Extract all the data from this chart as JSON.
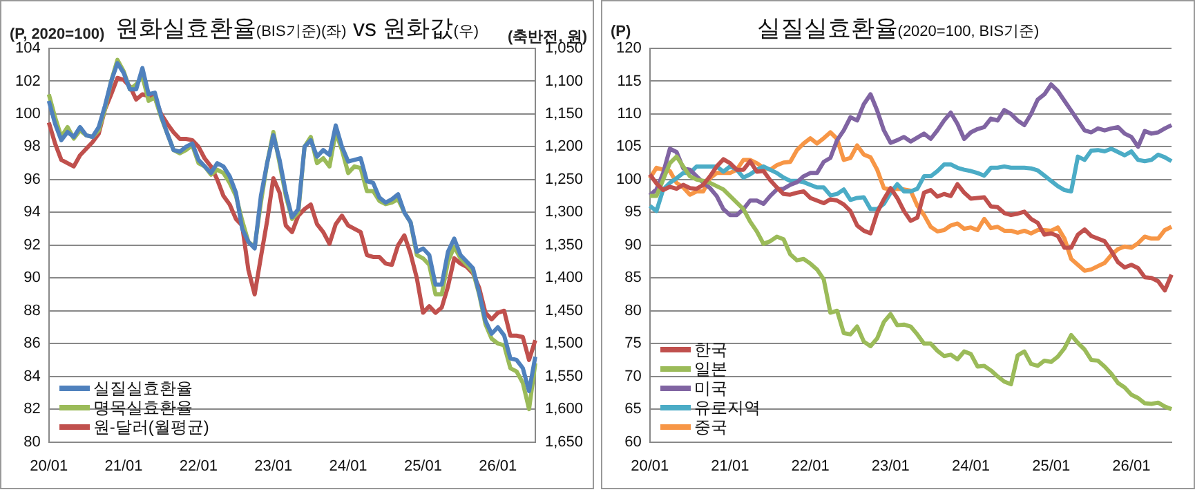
{
  "chart_data": [
    {
      "type": "line",
      "title": "원화실효환율(BIS기준)(좌) vs 원화값(우)",
      "ylabel": "(P, 2020=100)",
      "y2label": "(축반전, 원)",
      "categories": [
        "20/01",
        null,
        null,
        null,
        null,
        null,
        null,
        null,
        null,
        null,
        null,
        null,
        "21/01",
        null,
        null,
        null,
        null,
        null,
        null,
        null,
        null,
        null,
        null,
        null,
        "22/01",
        null,
        null,
        null,
        null,
        null,
        null,
        null,
        null,
        null,
        null,
        null,
        "23/01",
        null,
        null,
        null,
        null,
        null,
        null,
        null,
        null,
        null,
        null,
        null,
        "24/01",
        null,
        null,
        null,
        null,
        null,
        null,
        null,
        null,
        null,
        null,
        null,
        "25/01",
        null,
        null,
        null,
        null,
        null,
        null,
        null,
        null,
        null,
        null,
        null,
        "26/01",
        null,
        null,
        null,
        null,
        null,
        null
      ],
      "series": [
        {
          "name": "실질실효환율",
          "color": "#4f81bd",
          "values": [
            100.8,
            99.4,
            98.4,
            98.9,
            98.6,
            99.2,
            98.7,
            98.6,
            99.2,
            100.5,
            102.0,
            103.1,
            102.5,
            101.5,
            101.5,
            102.8,
            101.2,
            101.3,
            99.9,
            98.8,
            97.8,
            97.7,
            98.0,
            98.2,
            97.2,
            96.8,
            96.4,
            97.0,
            96.8,
            96.2,
            95.2,
            93.0,
            92.2,
            91.8,
            95.0,
            97.0,
            98.7,
            97.2,
            95.2,
            93.7,
            94.2,
            98.0,
            98.4,
            97.4,
            97.8,
            97.5,
            99.3,
            98.0,
            97.1,
            97.2,
            97.3,
            95.9,
            95.8,
            94.9,
            94.6,
            94.8,
            95.1,
            94.0,
            93.4,
            91.6,
            91.8,
            91.4,
            89.6,
            89.6,
            91.6,
            92.4,
            91.4,
            91.0,
            90.6,
            89.1,
            87.4,
            86.6,
            87.0,
            86.5,
            85.1,
            85.0,
            84.5,
            83.1,
            85.2
          ]
        },
        {
          "name": "명목실효환율",
          "color": "#9bbb59",
          "values": [
            101.2,
            99.8,
            98.6,
            99.2,
            98.5,
            99.0,
            98.7,
            98.6,
            99.0,
            100.3,
            102.0,
            103.3,
            102.6,
            101.5,
            101.8,
            102.3,
            100.8,
            101.0,
            99.8,
            98.8,
            97.8,
            97.6,
            97.8,
            98.1,
            97.0,
            96.8,
            96.3,
            96.6,
            96.4,
            95.8,
            95.0,
            93.5,
            92.2,
            91.9,
            94.6,
            97.0,
            98.9,
            97.0,
            95.0,
            93.6,
            94.0,
            98.0,
            98.6,
            97.0,
            97.3,
            96.8,
            98.9,
            97.8,
            96.4,
            96.8,
            96.7,
            95.3,
            95.3,
            94.7,
            94.5,
            94.6,
            94.8,
            94.0,
            93.4,
            91.4,
            91.2,
            90.8,
            89.0,
            89.0,
            91.0,
            91.9,
            91.2,
            90.8,
            90.4,
            89.0,
            87.2,
            86.3,
            86.0,
            85.9,
            84.5,
            84.3,
            83.6,
            82.0,
            84.8
          ]
        },
        {
          "name": "원-달러(월평균)",
          "color": "#c0504d",
          "axis": "y2",
          "values": [
            1163,
            1195,
            1220,
            1225,
            1230,
            1213,
            1203,
            1193,
            1180,
            1143,
            1120,
            1095,
            1098,
            1108,
            1128,
            1120,
            1123,
            1125,
            1150,
            1165,
            1178,
            1188,
            1188,
            1190,
            1200,
            1218,
            1230,
            1250,
            1275,
            1288,
            1310,
            1320,
            1388,
            1425,
            1368,
            1313,
            1248,
            1270,
            1320,
            1330,
            1305,
            1295,
            1288,
            1318,
            1330,
            1348,
            1318,
            1305,
            1320,
            1325,
            1330,
            1365,
            1368,
            1368,
            1378,
            1380,
            1350,
            1335,
            1363,
            1400,
            1453,
            1443,
            1453,
            1445,
            1413,
            1370,
            1378,
            1383,
            1393,
            1415,
            1453,
            1463,
            1453,
            1450,
            1488,
            1488,
            1490,
            1525,
            1495
          ]
        }
      ],
      "ylim": [
        80,
        104
      ],
      "yticks": [
        80,
        82,
        84,
        86,
        88,
        90,
        92,
        94,
        96,
        98,
        100,
        102,
        104
      ],
      "y2lim": [
        1650,
        1050
      ],
      "y2ticks": [
        {
          "value": 1050,
          "label": "1,050"
        },
        {
          "value": 1100,
          "label": "1,100"
        },
        {
          "value": 1150,
          "label": "1,150"
        },
        {
          "value": 1200,
          "label": "1,200"
        },
        {
          "value": 1250,
          "label": "1,250"
        },
        {
          "value": 1300,
          "label": "1,300"
        },
        {
          "value": 1350,
          "label": "1,350"
        },
        {
          "value": 1400,
          "label": "1,400"
        },
        {
          "value": 1450,
          "label": "1,450"
        },
        {
          "value": 1500,
          "label": "1,500"
        },
        {
          "value": 1550,
          "label": "1,550"
        },
        {
          "value": 1600,
          "label": "1,600"
        },
        {
          "value": 1650,
          "label": "1,650"
        }
      ],
      "grid": "y",
      "legend": "bottom left"
    },
    {
      "type": "line",
      "title": "실질실효환율(2020=100, BIS기준)",
      "ylabel": "(P)",
      "categories": [
        "20/01",
        null,
        null,
        null,
        null,
        null,
        null,
        null,
        null,
        null,
        null,
        null,
        "21/01",
        null,
        null,
        null,
        null,
        null,
        null,
        null,
        null,
        null,
        null,
        null,
        "22/01",
        null,
        null,
        null,
        null,
        null,
        null,
        null,
        null,
        null,
        null,
        null,
        "23/01",
        null,
        null,
        null,
        null,
        null,
        null,
        null,
        null,
        null,
        null,
        null,
        "24/01",
        null,
        null,
        null,
        null,
        null,
        null,
        null,
        null,
        null,
        null,
        null,
        "25/01",
        null,
        null,
        null,
        null,
        null,
        null,
        null,
        null,
        null,
        null,
        null,
        "26/01",
        null,
        null,
        null,
        null,
        null,
        null
      ],
      "series": [
        {
          "name": "한국",
          "color": "#c0504d",
          "values": [
            100.8,
            99.4,
            98.4,
            98.9,
            98.6,
            99.2,
            98.7,
            98.6,
            99.2,
            100.5,
            102.0,
            103.1,
            102.5,
            101.5,
            101.5,
            102.8,
            101.2,
            101.3,
            99.9,
            98.8,
            97.8,
            97.7,
            98.0,
            98.2,
            97.2,
            96.8,
            96.4,
            97.0,
            96.8,
            96.2,
            95.2,
            93.0,
            92.2,
            91.8,
            95.0,
            97.0,
            98.7,
            97.2,
            95.2,
            93.7,
            94.2,
            98.0,
            98.4,
            97.4,
            97.8,
            97.5,
            99.3,
            98.0,
            97.1,
            97.2,
            97.3,
            95.9,
            95.8,
            94.9,
            94.6,
            94.8,
            95.1,
            94.0,
            93.4,
            91.6,
            91.8,
            91.4,
            89.6,
            89.6,
            91.6,
            92.4,
            91.4,
            91.0,
            90.6,
            89.1,
            87.4,
            86.6,
            87.0,
            86.5,
            85.1,
            85.0,
            84.5,
            83.1,
            85.5
          ]
        },
        {
          "name": "일본",
          "color": "#9bbb59",
          "values": [
            97.5,
            97.5,
            100.0,
            102.5,
            103.5,
            102.0,
            100.5,
            100.0,
            99.8,
            99.5,
            99.0,
            98.5,
            97.5,
            96.5,
            95.5,
            93.6,
            92.1,
            90.2,
            90.6,
            91.3,
            90.9,
            88.6,
            87.7,
            87.9,
            87.2,
            86.3,
            84.8,
            79.7,
            80.0,
            76.6,
            76.4,
            77.6,
            75.3,
            74.6,
            75.8,
            78.3,
            79.5,
            77.8,
            77.9,
            77.6,
            76.4,
            75.0,
            75.0,
            73.9,
            73.1,
            73.3,
            72.6,
            73.8,
            73.4,
            71.5,
            71.6,
            70.9,
            70.0,
            69.2,
            68.8,
            73.2,
            73.8,
            71.9,
            71.6,
            72.4,
            72.2,
            73.0,
            74.3,
            76.3,
            75.1,
            74.1,
            72.5,
            72.4,
            71.5,
            70.4,
            69.0,
            68.3,
            67.2,
            66.7,
            65.9,
            65.8,
            66.0,
            65.4,
            65.0
          ]
        },
        {
          "name": "미국",
          "color": "#8064a2",
          "values": [
            97.6,
            98.5,
            101.0,
            104.7,
            104.2,
            101.7,
            101.5,
            100.5,
            99.5,
            98.7,
            97.5,
            95.5,
            94.6,
            94.6,
            95.5,
            96.8,
            96.8,
            96.3,
            97.5,
            98.5,
            98.6,
            99.2,
            99.6,
            100.5,
            101.0,
            101.0,
            102.7,
            103.3,
            106.0,
            107.5,
            109.5,
            109.0,
            111.5,
            113.0,
            110.5,
            107.5,
            105.6,
            106.0,
            106.5,
            105.8,
            106.4,
            107.0,
            106.2,
            107.5,
            109.0,
            110.2,
            108.5,
            106.2,
            107.2,
            107.7,
            108.0,
            109.3,
            109.0,
            110.6,
            110.0,
            109.0,
            108.3,
            110.0,
            112.2,
            113.0,
            114.5,
            113.5,
            112.0,
            110.5,
            109.0,
            107.5,
            107.2,
            107.8,
            107.5,
            107.8,
            108.0,
            107.0,
            106.5,
            105.0,
            107.4,
            107.0,
            107.2,
            107.8,
            108.3
          ]
        },
        {
          "name": "유로지역",
          "color": "#4bacc6",
          "values": [
            96.0,
            95.2,
            98.5,
            99.5,
            100.2,
            101.0,
            101.0,
            102.0,
            102.0,
            102.0,
            102.0,
            101.2,
            102.0,
            101.5,
            100.3,
            100.8,
            101.5,
            102.0,
            101.5,
            101.0,
            100.3,
            99.8,
            99.8,
            99.6,
            99.2,
            98.8,
            98.8,
            97.6,
            97.8,
            98.5,
            96.9,
            97.2,
            97.3,
            95.5,
            95.5,
            96.3,
            98.0,
            99.3,
            98.2,
            98.2,
            98.6,
            100.5,
            100.5,
            101.3,
            102.3,
            102.3,
            101.8,
            101.5,
            101.3,
            101.0,
            100.6,
            101.8,
            101.8,
            102.0,
            101.8,
            101.8,
            101.8,
            101.7,
            101.4,
            100.6,
            99.8,
            99.0,
            98.4,
            98.2,
            103.5,
            103.0,
            104.4,
            104.5,
            104.3,
            104.7,
            104.2,
            103.7,
            104.3,
            103.0,
            102.8,
            103.0,
            103.8,
            103.4,
            102.8
          ]
        },
        {
          "name": "중국",
          "color": "#f79646",
          "values": [
            100.2,
            101.8,
            101.5,
            101.3,
            99.5,
            98.8,
            97.7,
            98.2,
            98.2,
            100.2,
            101.0,
            101.0,
            101.0,
            101.5,
            103.0,
            103.0,
            102.5,
            101.8,
            101.5,
            102.2,
            102.6,
            102.7,
            104.5,
            105.5,
            106.3,
            105.5,
            106.3,
            107.2,
            106.2,
            103.0,
            103.3,
            105.2,
            103.8,
            103.4,
            101.5,
            98.7,
            98.5,
            98.6,
            98.5,
            98.3,
            96.0,
            94.6,
            92.8,
            92.1,
            92.3,
            93.0,
            93.3,
            92.5,
            92.7,
            92.3,
            94.0,
            92.6,
            92.8,
            92.2,
            92.2,
            91.9,
            92.2,
            91.8,
            92.3,
            92.3,
            92.2,
            92.7,
            91.0,
            87.9,
            87.0,
            86.1,
            86.3,
            86.8,
            87.3,
            88.5,
            89.4,
            89.8,
            89.6,
            90.3,
            91.3,
            91.0,
            91.0,
            92.3,
            92.8
          ]
        }
      ],
      "ylim": [
        60,
        120
      ],
      "yticks": [
        60,
        65,
        70,
        75,
        80,
        85,
        90,
        95,
        100,
        105,
        110,
        115,
        120
      ],
      "grid": "y",
      "legend": "bottom left"
    }
  ]
}
